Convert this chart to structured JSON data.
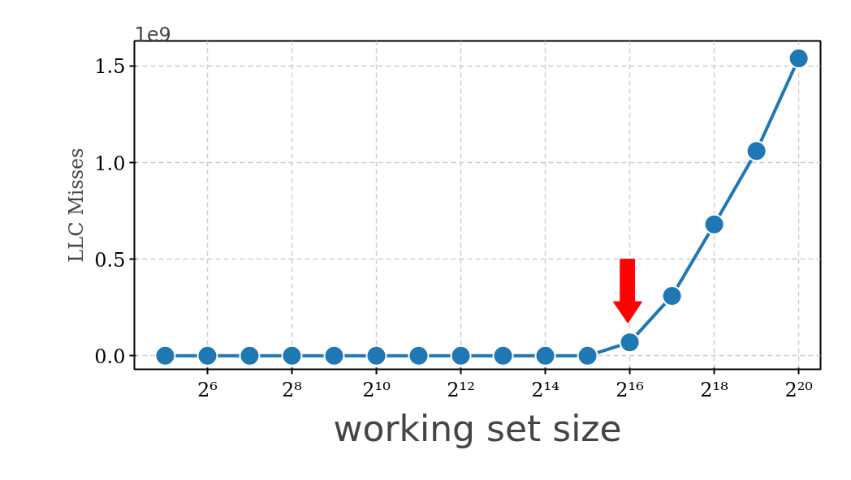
{
  "chart_data": {
    "type": "line",
    "ylabel": "LLC Misses",
    "xlabel": "working set size",
    "annotations": [
      "1e9"
    ],
    "x": [
      32,
      64,
      128,
      256,
      512,
      1024,
      2048,
      4096,
      8192,
      16384,
      32768,
      65536,
      131072,
      262144,
      524288,
      1048576
    ],
    "series": [
      {
        "color": "#1f77b4",
        "values": [
          0,
          0,
          0,
          0,
          0,
          0,
          0,
          0,
          0,
          0,
          0,
          0.07,
          0.31,
          0.68,
          1.06,
          1.54
        ]
      }
    ],
    "log": "x",
    "xlim": [
      19.3,
      1500000
    ],
    "ylim": [
      -0.07,
      1.63
    ],
    "xticks": [
      {
        "value": 64,
        "label": "2⁶"
      },
      {
        "value": 256,
        "label": "2⁸"
      },
      {
        "value": 1024,
        "label": "2¹⁰"
      },
      {
        "value": 4096,
        "label": "2¹²"
      },
      {
        "value": 16384,
        "label": "2¹⁴"
      },
      {
        "value": 65536,
        "label": "2¹⁶"
      },
      {
        "value": 262144,
        "label": "2¹⁸"
      },
      {
        "value": 1048576,
        "label": "2²⁰"
      }
    ],
    "yticks": [
      {
        "value": 0,
        "label": "0.0"
      },
      {
        "value": 0.5,
        "label": "0.5"
      },
      {
        "value": 1,
        "label": "1.0"
      },
      {
        "value": 1.5,
        "label": "1.5"
      }
    ],
    "grid": true,
    "marker": "circle",
    "line_style": "solid"
  }
}
